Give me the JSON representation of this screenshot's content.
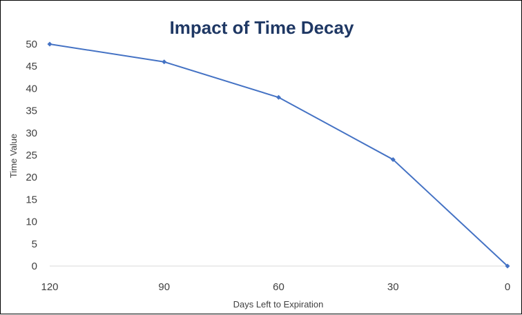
{
  "chart_data": {
    "type": "line",
    "title": "Impact of Time Decay",
    "xlabel": "Days Left to Expiration",
    "ylabel": "Time Value",
    "categories": [
      "120",
      "90",
      "60",
      "30",
      "0"
    ],
    "series": [
      {
        "values": [
          50,
          46,
          38,
          24,
          0
        ]
      }
    ],
    "ylim": [
      0,
      50
    ],
    "yticks": [
      "0",
      "5",
      "10",
      "15",
      "20",
      "25",
      "30",
      "35",
      "40",
      "45",
      "50"
    ],
    "grid": false,
    "legend": "none",
    "colors": {
      "line": "#4472C4",
      "title": "#1F3864",
      "axis": "#D9D9D9"
    }
  }
}
